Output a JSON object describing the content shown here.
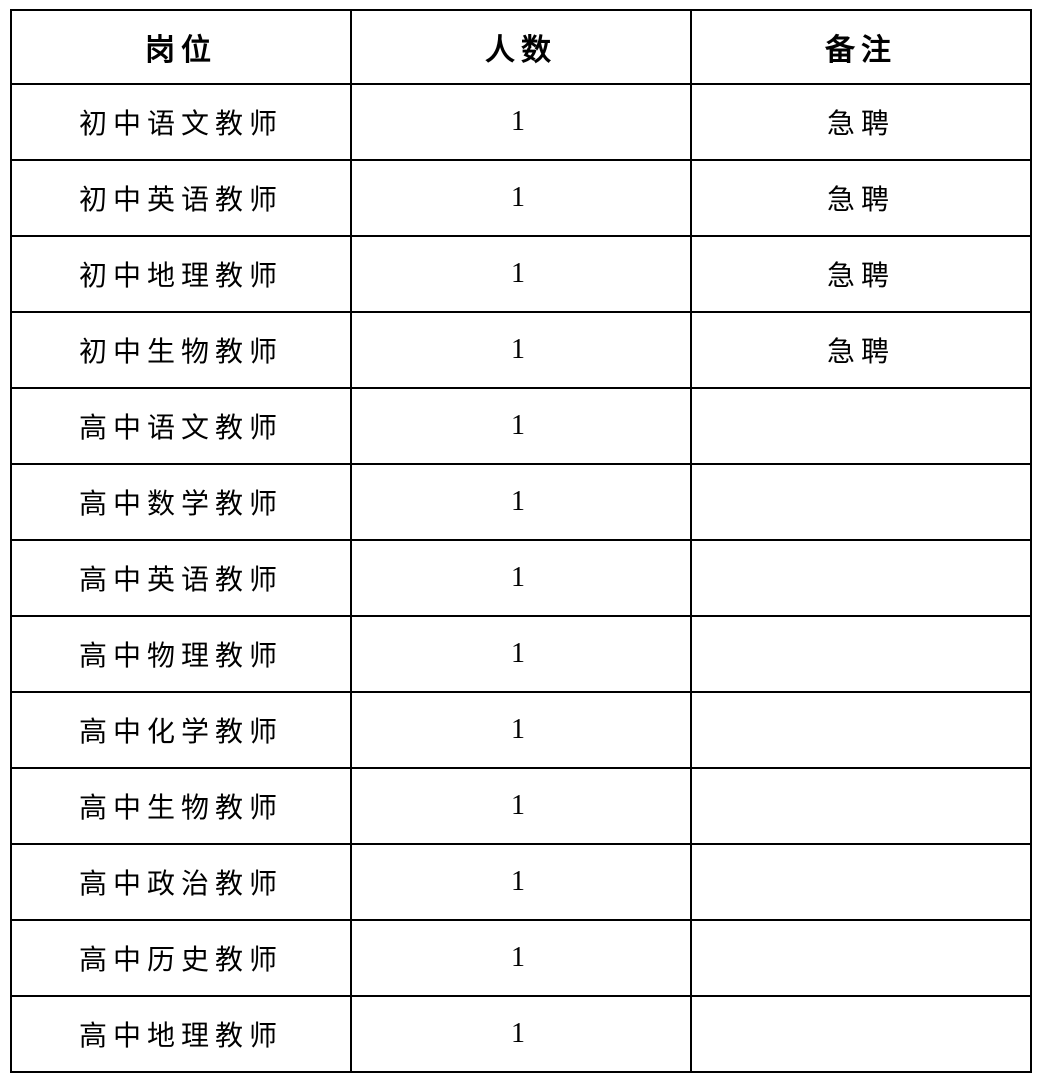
{
  "document": {
    "table": {
      "headers": [
        "岗位",
        "人数",
        "备注"
      ],
      "rows": [
        {
          "position": "初中语文教师",
          "headcount": "1",
          "remark": "急聘"
        },
        {
          "position": "初中英语教师",
          "headcount": "1",
          "remark": "急聘"
        },
        {
          "position": "初中地理教师",
          "headcount": "1",
          "remark": "急聘"
        },
        {
          "position": "初中生物教师",
          "headcount": "1",
          "remark": "急聘"
        },
        {
          "position": "高中语文教师",
          "headcount": "1",
          "remark": ""
        },
        {
          "position": "高中数学教师",
          "headcount": "1",
          "remark": ""
        },
        {
          "position": "高中英语教师",
          "headcount": "1",
          "remark": ""
        },
        {
          "position": "高中物理教师",
          "headcount": "1",
          "remark": ""
        },
        {
          "position": "高中化学教师",
          "headcount": "1",
          "remark": ""
        },
        {
          "position": "高中生物教师",
          "headcount": "1",
          "remark": ""
        },
        {
          "position": "高中政治教师",
          "headcount": "1",
          "remark": ""
        },
        {
          "position": "高中历史教师",
          "headcount": "1",
          "remark": ""
        },
        {
          "position": "高中地理教师",
          "headcount": "1",
          "remark": ""
        }
      ]
    }
  },
  "colors": {
    "background": "#ffffff",
    "border": "#000000",
    "text": "#000000"
  }
}
